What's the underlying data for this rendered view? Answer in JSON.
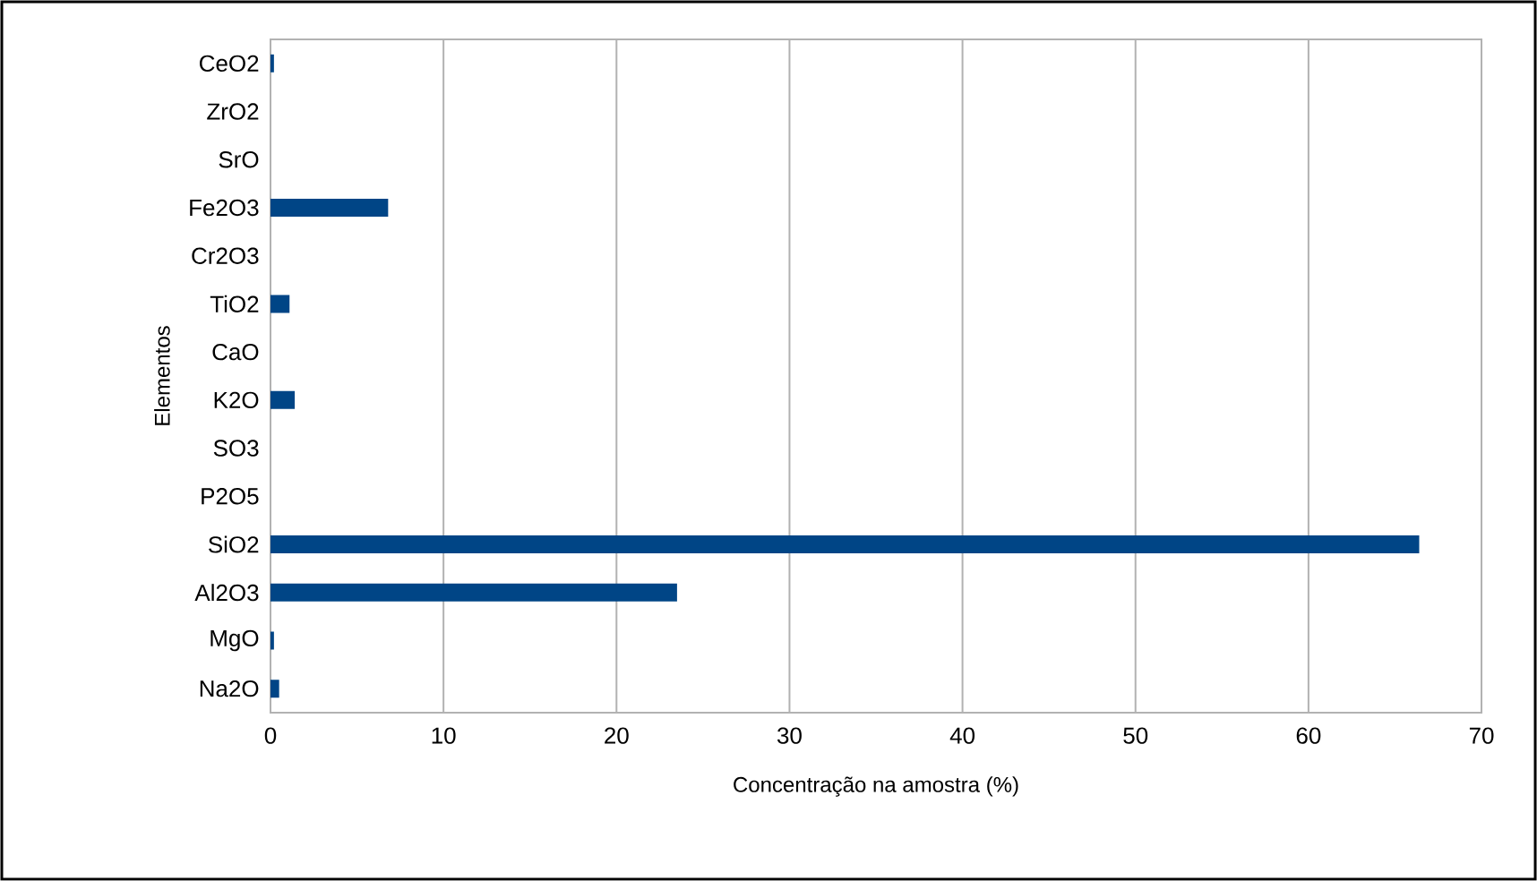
{
  "chart_data": {
    "type": "bar",
    "orientation": "horizontal",
    "xlabel": "Concentração na amostra (%)",
    "ylabel": "Elementos",
    "categories": [
      "CeO2",
      "ZrO2",
      "SrO",
      "Fe2O3",
      "Cr2O3",
      "TiO2",
      "CaO",
      "K2O",
      "SO3",
      "P2O5",
      "SiO2",
      "Al2O3",
      "MgO",
      "Na2O"
    ],
    "values": [
      0.2,
      0,
      0,
      6.8,
      0,
      1.1,
      0,
      1.4,
      0,
      0,
      66.4,
      23.5,
      0.2,
      0.5
    ],
    "color": "#004586",
    "xlim": [
      0,
      70
    ],
    "xticks": [
      0,
      10,
      20,
      30,
      40,
      50,
      60,
      70
    ],
    "grid": "x"
  }
}
